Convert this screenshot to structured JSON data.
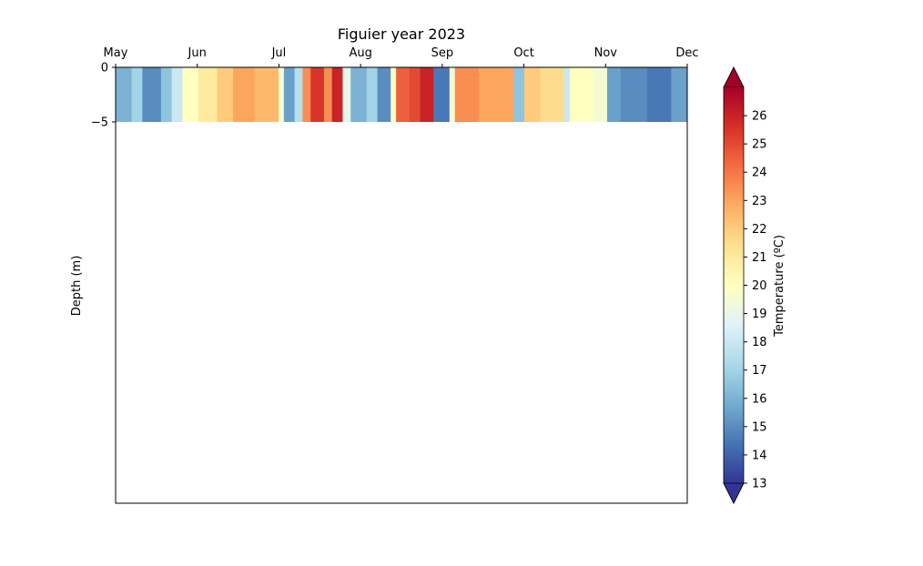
{
  "chart_data": {
    "type": "heatmap",
    "title": "Figuier year 2023",
    "ylabel": "Depth (m)",
    "colorbar_label": "Temperature (ºC)",
    "x_ticks": [
      "May",
      "Jun",
      "Jul",
      "Aug",
      "Sep",
      "Oct",
      "Nov",
      "Dec"
    ],
    "y_ticks": [
      "0",
      "−5"
    ],
    "colorbar_ticks": [
      "13",
      "14",
      "15",
      "16",
      "17",
      "18",
      "19",
      "20",
      "21",
      "22",
      "23",
      "24",
      "25",
      "26"
    ],
    "colorbar_range": [
      13,
      27
    ],
    "colormap": "RdYlBu_r",
    "colormap_stops": [
      "#313695",
      "#4575b4",
      "#74add1",
      "#abd9e9",
      "#e0f3f8",
      "#ffffbf",
      "#fee090",
      "#fdae61",
      "#f46d43",
      "#d73027",
      "#a50026"
    ],
    "grid": false,
    "depth_range_m": [
      0,
      -5
    ],
    "x_range": [
      "2023-05-01",
      "2023-12-01"
    ],
    "temperature_segments": [
      {
        "from": "2023-05-01",
        "to": "2023-05-07",
        "temp": 16.0
      },
      {
        "from": "2023-05-07",
        "to": "2023-05-11",
        "temp": 17.0
      },
      {
        "from": "2023-05-11",
        "to": "2023-05-18",
        "temp": 15.0
      },
      {
        "from": "2023-05-18",
        "to": "2023-05-22",
        "temp": 16.5
      },
      {
        "from": "2023-05-22",
        "to": "2023-05-26",
        "temp": 18.0
      },
      {
        "from": "2023-05-26",
        "to": "2023-06-01",
        "temp": 20.0
      },
      {
        "from": "2023-06-01",
        "to": "2023-06-08",
        "temp": 21.0
      },
      {
        "from": "2023-06-08",
        "to": "2023-06-14",
        "temp": 22.0
      },
      {
        "from": "2023-06-14",
        "to": "2023-06-22",
        "temp": 23.0
      },
      {
        "from": "2023-06-22",
        "to": "2023-07-01",
        "temp": 22.5
      },
      {
        "from": "2023-07-01",
        "to": "2023-07-03",
        "temp": 19.5
      },
      {
        "from": "2023-07-03",
        "to": "2023-07-07",
        "temp": 15.5
      },
      {
        "from": "2023-07-07",
        "to": "2023-07-10",
        "temp": 17.5
      },
      {
        "from": "2023-07-10",
        "to": "2023-07-13",
        "temp": 23.5
      },
      {
        "from": "2023-07-13",
        "to": "2023-07-18",
        "temp": 25.5
      },
      {
        "from": "2023-07-18",
        "to": "2023-07-21",
        "temp": 23.5
      },
      {
        "from": "2023-07-21",
        "to": "2023-07-25",
        "temp": 26.0
      },
      {
        "from": "2023-07-25",
        "to": "2023-07-28",
        "temp": 19.0
      },
      {
        "from": "2023-07-28",
        "to": "2023-08-03",
        "temp": 16.0
      },
      {
        "from": "2023-08-03",
        "to": "2023-08-07",
        "temp": 17.0
      },
      {
        "from": "2023-08-07",
        "to": "2023-08-12",
        "temp": 15.0
      },
      {
        "from": "2023-08-12",
        "to": "2023-08-14",
        "temp": 20.0
      },
      {
        "from": "2023-08-14",
        "to": "2023-08-19",
        "temp": 24.5
      },
      {
        "from": "2023-08-19",
        "to": "2023-08-23",
        "temp": 25.0
      },
      {
        "from": "2023-08-23",
        "to": "2023-08-28",
        "temp": 26.0
      },
      {
        "from": "2023-08-28",
        "to": "2023-09-03",
        "temp": 14.5
      },
      {
        "from": "2023-09-03",
        "to": "2023-09-05",
        "temp": 19.5
      },
      {
        "from": "2023-09-05",
        "to": "2023-09-14",
        "temp": 23.5
      },
      {
        "from": "2023-09-14",
        "to": "2023-09-27",
        "temp": 23.0
      },
      {
        "from": "2023-09-27",
        "to": "2023-10-01",
        "temp": 16.5
      },
      {
        "from": "2023-10-01",
        "to": "2023-10-07",
        "temp": 22.0
      },
      {
        "from": "2023-10-07",
        "to": "2023-10-16",
        "temp": 21.5
      },
      {
        "from": "2023-10-16",
        "to": "2023-10-18",
        "temp": 18.0
      },
      {
        "from": "2023-10-18",
        "to": "2023-10-27",
        "temp": 20.0
      },
      {
        "from": "2023-10-27",
        "to": "2023-11-01",
        "temp": 19.5
      },
      {
        "from": "2023-11-01",
        "to": "2023-11-06",
        "temp": 15.5
      },
      {
        "from": "2023-11-06",
        "to": "2023-11-16",
        "temp": 15.0
      },
      {
        "from": "2023-11-16",
        "to": "2023-11-25",
        "temp": 14.5
      },
      {
        "from": "2023-11-25",
        "to": "2023-12-01",
        "temp": 15.5
      }
    ]
  }
}
